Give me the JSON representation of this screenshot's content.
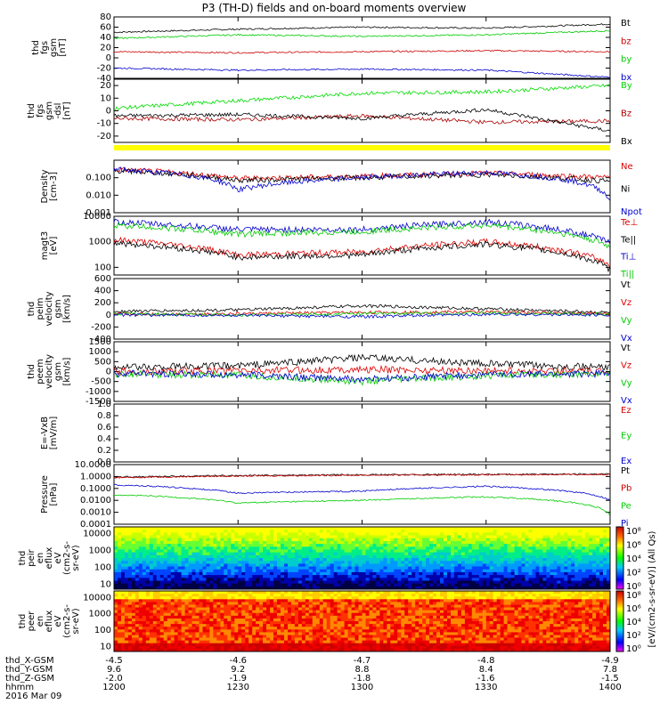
{
  "title": "P3 (TH-D) fields and on-board moments overview",
  "date": "2016 Mar 09",
  "chart_data": [
    {
      "type": "line",
      "panel": "fgs_gsm",
      "ylabel": [
        "thd",
        "fgs",
        "gsm",
        "[nT]"
      ],
      "ylim": [
        -40,
        80
      ],
      "ticks": [
        80,
        60,
        40,
        20,
        0,
        -20,
        -40
      ],
      "series": [
        {
          "name": "Bt",
          "color": "#000000",
          "x": [
            1200,
            1230,
            1300,
            1330,
            1400
          ],
          "values": [
            50,
            56,
            60,
            58,
            66
          ]
        },
        {
          "name": "bz",
          "color": "#cc0000",
          "x": [
            1200,
            1230,
            1300,
            1330,
            1400
          ],
          "values": [
            12,
            10,
            12,
            14,
            12
          ]
        },
        {
          "name": "by",
          "color": "#00cc00",
          "x": [
            1200,
            1230,
            1300,
            1330,
            1400
          ],
          "values": [
            38,
            45,
            42,
            45,
            53
          ]
        },
        {
          "name": "bx",
          "color": "#0000cc",
          "x": [
            1200,
            1230,
            1300,
            1330,
            1400
          ],
          "values": [
            -20,
            -24,
            -22,
            -24,
            -38
          ]
        }
      ]
    },
    {
      "type": "line",
      "panel": "fgs_gsm_dsl",
      "ylabel": [
        "thd",
        "fgs",
        "gsm",
        "-dsl",
        "[nT]"
      ],
      "ylim": [
        -25,
        25
      ],
      "ticks": [
        20,
        10,
        0,
        -10,
        -20
      ],
      "series": [
        {
          "name": "By",
          "color": "#00dd00",
          "x": [
            1200,
            1230,
            1300,
            1330,
            1400
          ],
          "values": [
            2,
            8,
            14,
            15,
            20
          ]
        },
        {
          "name": "Bz",
          "color": "#aa0000",
          "x": [
            1200,
            1230,
            1300,
            1330,
            1400
          ],
          "values": [
            -6,
            -7,
            -4,
            -9,
            -8
          ]
        },
        {
          "name": "Bx",
          "color": "#000000",
          "x": [
            1200,
            1230,
            1300,
            1330,
            1400
          ],
          "values": [
            -4,
            -3,
            -6,
            1,
            -16
          ]
        }
      ]
    },
    {
      "type": "line",
      "panel": "density",
      "ylabel": [
        "Density",
        "[cm-3]"
      ],
      "scale": "log",
      "ylim": [
        0.001,
        1.0
      ],
      "ticks": [
        "0.100",
        "0.010",
        "0.001"
      ],
      "series": [
        {
          "name": "Ne",
          "color": "#dd0000",
          "x": [
            1200,
            1230,
            1300,
            1330,
            1400
          ],
          "values": [
            0.3,
            0.09,
            0.12,
            0.18,
            0.1
          ]
        },
        {
          "name": "Ni",
          "color": "#000000",
          "x": [
            1200,
            1230,
            1300,
            1330,
            1400
          ],
          "values": [
            0.25,
            0.07,
            0.1,
            0.15,
            0.06
          ]
        },
        {
          "name": "Npot",
          "color": "#0000cc",
          "x": [
            1200,
            1230,
            1300,
            1330,
            1400
          ],
          "values": [
            0.3,
            0.02,
            0.1,
            0.2,
            0.004
          ]
        }
      ]
    },
    {
      "type": "line",
      "panel": "temperature",
      "ylabel": [
        "magt3",
        "[eV]"
      ],
      "scale": "log",
      "ylim": [
        50,
        10000
      ],
      "ticks": [
        "10000",
        "1000",
        "100"
      ],
      "series": [
        {
          "name": "Te⊥",
          "color": "#dd0000",
          "x": [
            1200,
            1230,
            1300,
            1330,
            1400
          ],
          "values": [
            1200,
            300,
            400,
            1000,
            120
          ]
        },
        {
          "name": "Te||",
          "color": "#000000",
          "x": [
            1200,
            1230,
            1300,
            1330,
            1400
          ],
          "values": [
            900,
            250,
            300,
            800,
            80
          ]
        },
        {
          "name": "Ti⊥",
          "color": "#0000cc",
          "x": [
            1200,
            1230,
            1300,
            1330,
            1400
          ],
          "values": [
            6000,
            3000,
            3000,
            6000,
            900
          ]
        },
        {
          "name": "Ti||",
          "color": "#00cc00",
          "x": [
            1200,
            1230,
            1300,
            1330,
            1400
          ],
          "values": [
            4500,
            2000,
            2500,
            4500,
            600
          ]
        }
      ]
    },
    {
      "type": "line",
      "panel": "ion_velocity",
      "ylabel": [
        "thd",
        "peim",
        "velocity",
        "gsm",
        "[km/s]"
      ],
      "ylim": [
        -400,
        600
      ],
      "ticks": [
        600,
        400,
        200,
        0,
        -200,
        -400
      ],
      "series": [
        {
          "name": "Vt",
          "color": "#000000",
          "x": [
            1200,
            1230,
            1300,
            1330,
            1400
          ],
          "values": [
            60,
            80,
            150,
            100,
            40
          ]
        },
        {
          "name": "Vz",
          "color": "#dd0000",
          "x": [
            1200,
            1230,
            1300,
            1330,
            1400
          ],
          "values": [
            10,
            20,
            40,
            50,
            20
          ]
        },
        {
          "name": "Vy",
          "color": "#00cc00",
          "x": [
            1200,
            1230,
            1300,
            1330,
            1400
          ],
          "values": [
            20,
            0,
            20,
            30,
            10
          ]
        },
        {
          "name": "Vx",
          "color": "#0000cc",
          "x": [
            1200,
            1230,
            1300,
            1330,
            1400
          ],
          "values": [
            0,
            -10,
            -30,
            10,
            0
          ]
        }
      ]
    },
    {
      "type": "line",
      "panel": "electron_velocity",
      "ylabel": [
        "thd",
        "peem",
        "velocity",
        "gsm",
        "[km/s]"
      ],
      "ylim": [
        -1500,
        1500
      ],
      "ticks": [
        1500,
        1000,
        500,
        0,
        -500,
        -1000,
        -1500
      ],
      "series": [
        {
          "name": "Vt",
          "color": "#000000",
          "x": [
            1200,
            1230,
            1300,
            1330,
            1400
          ],
          "values": [
            200,
            300,
            700,
            400,
            200
          ]
        },
        {
          "name": "Vz",
          "color": "#dd0000",
          "x": [
            1200,
            1230,
            1300,
            1330,
            1400
          ],
          "values": [
            0,
            50,
            100,
            50,
            0
          ]
        },
        {
          "name": "Vy",
          "color": "#00cc00",
          "x": [
            1200,
            1230,
            1300,
            1330,
            1400
          ],
          "values": [
            -100,
            -200,
            -500,
            -200,
            -100
          ]
        },
        {
          "name": "Vx",
          "color": "#0000cc",
          "x": [
            1200,
            1230,
            1300,
            1330,
            1400
          ],
          "values": [
            -100,
            -150,
            -400,
            -150,
            -100
          ]
        }
      ]
    },
    {
      "type": "line",
      "panel": "efield",
      "ylabel": [
        "E=-VxB",
        "[mV/m]"
      ],
      "ylim": [
        0.0,
        1.0
      ],
      "ticks": [
        "1.0",
        "0.8",
        "0.6",
        "0.4",
        "0.2",
        "0.0"
      ],
      "series": [
        {
          "name": "Ez",
          "color": "#dd0000",
          "x": [],
          "values": []
        },
        {
          "name": "Ey",
          "color": "#00cc00",
          "x": [],
          "values": []
        },
        {
          "name": "Ex",
          "color": "#0000cc",
          "x": [],
          "values": []
        }
      ]
    },
    {
      "type": "line",
      "panel": "pressure",
      "ylabel": [
        "Pressure",
        "[nPa]"
      ],
      "scale": "log",
      "ylim": [
        0.0001,
        10
      ],
      "ticks": [
        "10.0000",
        "1.0000",
        "0.1000",
        "0.0100",
        "0.0010",
        "0.0001"
      ],
      "series": [
        {
          "name": "Pt",
          "color": "#000000",
          "x": [
            1200,
            1230,
            1300,
            1330,
            1400
          ],
          "values": [
            0.9,
            1.2,
            1.4,
            1.5,
            1.6
          ]
        },
        {
          "name": "Pb",
          "color": "#cc0000",
          "x": [
            1200,
            1230,
            1300,
            1330,
            1400
          ],
          "values": [
            0.8,
            1.1,
            1.3,
            1.4,
            1.5
          ]
        },
        {
          "name": "Pe",
          "color": "#00cc00",
          "x": [
            1200,
            1230,
            1300,
            1330,
            1400
          ],
          "values": [
            0.03,
            0.006,
            0.01,
            0.02,
            0.0006
          ]
        },
        {
          "name": "Pi",
          "color": "#0000cc",
          "x": [
            1200,
            1230,
            1300,
            1330,
            1400
          ],
          "values": [
            0.2,
            0.04,
            0.06,
            0.15,
            0.01
          ]
        }
      ]
    },
    {
      "type": "heatmap",
      "panel": "ion_spectrogram",
      "ylabel": [
        "thd",
        "peir",
        "en",
        "eflux",
        "eV",
        "(cm2-s-",
        "sr-eV)"
      ],
      "scale": "log",
      "ylim": [
        5,
        25000
      ],
      "ticks": [
        "10000",
        "1000",
        "100",
        "10"
      ]
    },
    {
      "type": "heatmap",
      "panel": "electron_spectrogram",
      "ylabel": [
        "thd",
        "peer",
        "en",
        "eflux",
        "eV",
        "(cm2-s-",
        "sr-eV)"
      ],
      "scale": "log",
      "ylim": [
        5,
        25000
      ],
      "ticks": [
        "10000",
        "1000",
        "100",
        "10"
      ]
    }
  ],
  "colorbar": {
    "label": "[eV/(cm2-s-sr-eV)] (All Qs)",
    "ion_ticks": [
      "10⁸",
      "10⁶",
      "10⁴",
      "10²",
      "10⁰"
    ],
    "electron_ticks": [
      "10⁸",
      "10⁶",
      "10⁴",
      "10²",
      "10⁰"
    ]
  },
  "xaxis": {
    "times": [
      "1200",
      "1230",
      "1300",
      "1330",
      "1400"
    ],
    "rows": [
      {
        "label": "thd_X-GSM",
        "values": [
          "-4.5",
          "-4.6",
          "-4.7",
          "-4.8",
          "-4.9"
        ]
      },
      {
        "label": "thd_Y-GSM",
        "values": [
          "9.6",
          "9.2",
          "8.8",
          "8.4",
          "7.8"
        ]
      },
      {
        "label": "thd_Z-GSM",
        "values": [
          "-2.0",
          "-1.9",
          "-1.8",
          "-1.6",
          "-1.5"
        ]
      },
      {
        "label": "hhmm",
        "values": [
          "1200",
          "1230",
          "1300",
          "1330",
          "1400"
        ]
      }
    ]
  }
}
